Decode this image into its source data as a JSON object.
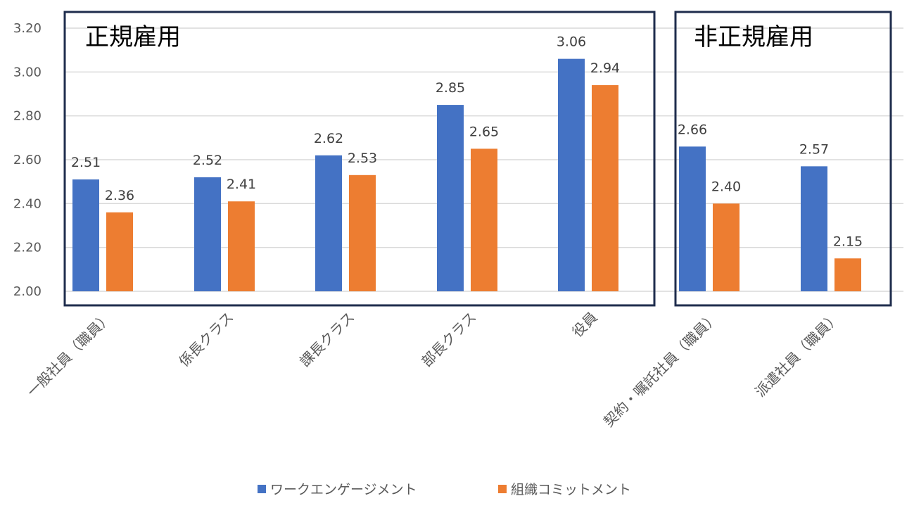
{
  "chart_data": {
    "type": "bar",
    "categories": [
      "一般社員（職員）",
      "係長クラス",
      "課長クラス",
      "部長クラス",
      "役員",
      "契約・嘱託社員（職員）",
      "派遣社員（職員）"
    ],
    "series": [
      {
        "name": "ワークエンゲージメント",
        "color": "#4472C4",
        "values": [
          2.51,
          2.52,
          2.62,
          2.85,
          3.06,
          2.66,
          2.57
        ]
      },
      {
        "name": "組織コミットメント",
        "color": "#ED7D31",
        "values": [
          2.36,
          2.41,
          2.53,
          2.65,
          2.94,
          2.4,
          2.15
        ]
      }
    ],
    "ylim": [
      2.0,
      3.2
    ],
    "yticks": [
      "2.00",
      "2.20",
      "2.40",
      "2.60",
      "2.80",
      "3.00",
      "3.20"
    ],
    "grid": true,
    "legend_position": "bottom",
    "groups": [
      {
        "label": "正規雇用",
        "from": 0,
        "to": 4
      },
      {
        "label": "非正規雇用",
        "from": 5,
        "to": 6
      }
    ],
    "colors": {
      "frame": "#1F2D4D",
      "grid": "#D9D9D9",
      "text": "#595959"
    }
  }
}
